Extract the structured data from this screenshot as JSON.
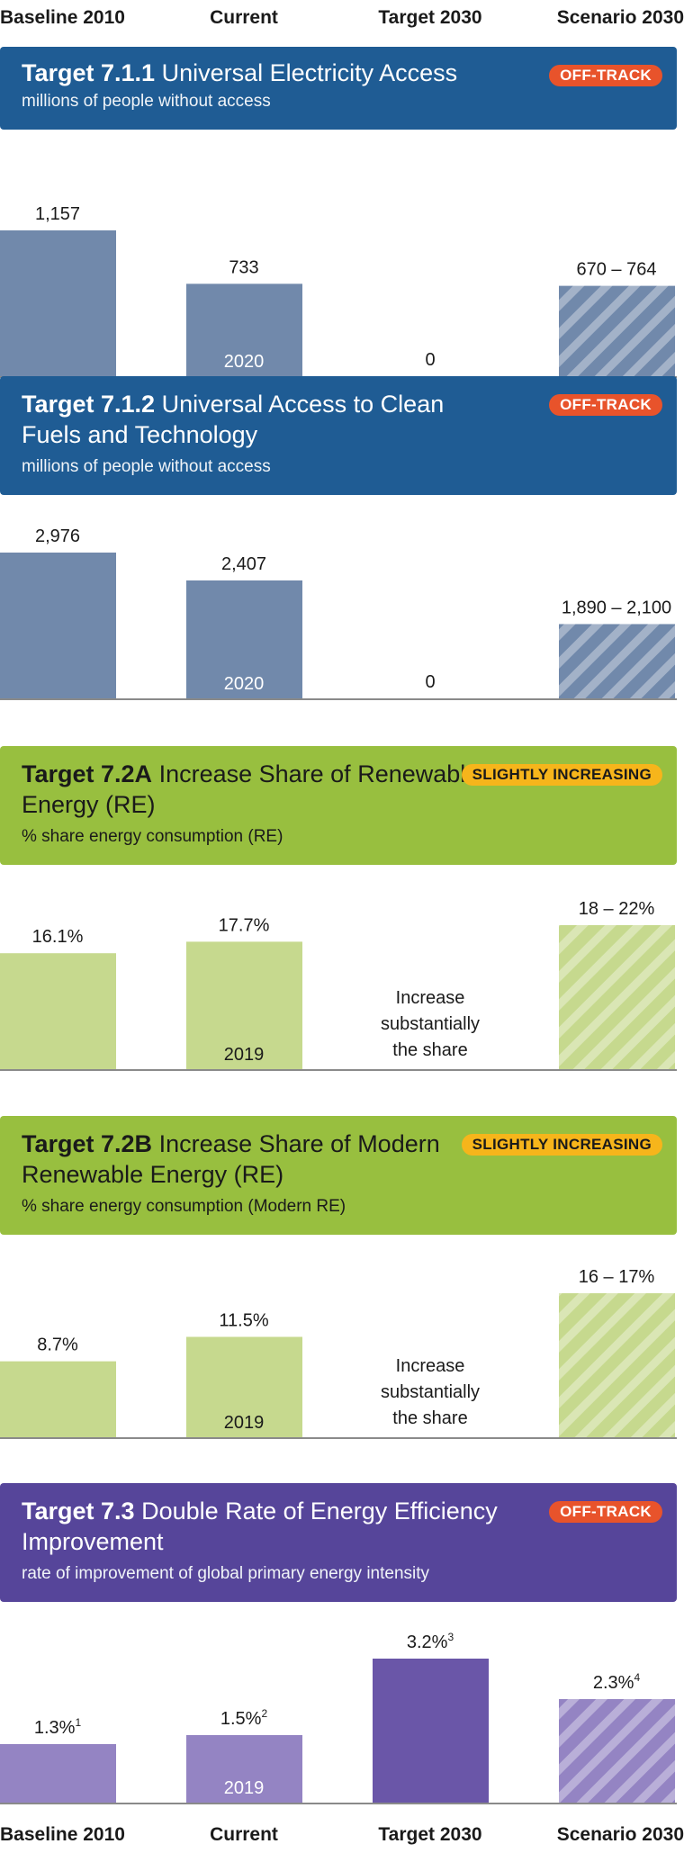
{
  "columns": [
    "Baseline 2010",
    "Current",
    "Target 2030",
    "Scenario 2030"
  ],
  "colors": {
    "blue_banner": "#1f5c94",
    "blue_bar": "#7189ab",
    "green_banner": "#98bf3f",
    "green_bar": "#c6d98e",
    "purple_banner": "#56459a",
    "purple_bar": "#9484c3",
    "purple_target": "#6a56a8",
    "off_track": "#e8532b",
    "slightly_increasing": "#f6b51b"
  },
  "panels": [
    {
      "code": "Target 7.1.1",
      "title": "Universal Electricity Access",
      "subtitle": "millions of people without access",
      "status": "OFF-TRACK",
      "theme": "blue"
    },
    {
      "code": "Target 7.1.2",
      "title": "Universal Access to Clean Fuels and Technology",
      "subtitle": "millions of people without access",
      "status": "OFF-TRACK",
      "theme": "blue"
    },
    {
      "code": "Target 7.2A",
      "title": "Increase Share of Renewable Energy (RE)",
      "subtitle": "% share energy consumption (RE)",
      "status": "SLIGHTLY INCREASING",
      "theme": "green"
    },
    {
      "code": "Target 7.2B",
      "title": "Increase Share of Modern Renewable Energy (RE)",
      "subtitle": "% share energy consumption (Modern RE)",
      "status": "SLIGHTLY INCREASING",
      "theme": "green"
    },
    {
      "code": "Target 7.3",
      "title": "Double Rate of Energy Efficiency Improvement",
      "subtitle": "rate of improvement of global primary energy intensity",
      "status": "OFF-TRACK",
      "theme": "purple"
    }
  ],
  "chart_data": [
    {
      "type": "bar",
      "title": "Target 7.1.1 Universal Electricity Access",
      "ylabel": "millions of people without access",
      "categories": [
        "Baseline 2010",
        "Current",
        "Target 2030",
        "Scenario 2030"
      ],
      "values": [
        1157,
        733,
        0,
        717
      ],
      "range": [
        null,
        null,
        null,
        [
          670,
          764
        ]
      ],
      "labels": [
        "1,157",
        "733",
        "0",
        "670 – 764"
      ],
      "year_labels": [
        "",
        "2020",
        "",
        ""
      ],
      "hatched": [
        false,
        false,
        false,
        true
      ],
      "ylim": [
        0,
        1157
      ]
    },
    {
      "type": "bar",
      "title": "Target 7.1.2 Universal Access to Clean Fuels and Technology",
      "ylabel": "millions of people without access",
      "categories": [
        "Baseline 2010",
        "Current",
        "Target 2030",
        "Scenario 2030"
      ],
      "values": [
        2976,
        2407,
        0,
        1995
      ],
      "range": [
        null,
        null,
        null,
        [
          1890,
          2100
        ]
      ],
      "labels": [
        "2,976",
        "2,407",
        "0",
        "1,890 – 2,100"
      ],
      "year_labels": [
        "",
        "2020",
        "",
        ""
      ],
      "hatched": [
        false,
        false,
        false,
        true
      ],
      "ylim": [
        0,
        2976
      ]
    },
    {
      "type": "bar",
      "title": "Target 7.2A Increase Share of Renewable Energy (RE)",
      "ylabel": "% share energy consumption (RE)",
      "categories": [
        "Baseline 2010",
        "Current",
        "Target 2030",
        "Scenario 2030"
      ],
      "values": [
        16.1,
        17.7,
        null,
        20
      ],
      "range": [
        null,
        null,
        null,
        [
          18,
          22
        ]
      ],
      "labels": [
        "16.1%",
        "17.7%",
        "Increase substantially the share",
        "18 – 22%"
      ],
      "year_labels": [
        "",
        "2019",
        "",
        ""
      ],
      "hatched": [
        false,
        false,
        false,
        true
      ],
      "ylim": [
        0,
        20
      ]
    },
    {
      "type": "bar",
      "title": "Target 7.2B Increase Share of Modern Renewable Energy (RE)",
      "ylabel": "% share energy consumption (Modern RE)",
      "categories": [
        "Baseline 2010",
        "Current",
        "Target 2030",
        "Scenario 2030"
      ],
      "values": [
        8.7,
        11.5,
        null,
        16.5
      ],
      "range": [
        null,
        null,
        null,
        [
          16,
          17
        ]
      ],
      "labels": [
        "8.7%",
        "11.5%",
        "Increase substantially the share",
        "16 – 17%"
      ],
      "year_labels": [
        "",
        "2019",
        "",
        ""
      ],
      "hatched": [
        false,
        false,
        false,
        true
      ],
      "ylim": [
        0,
        16.5
      ]
    },
    {
      "type": "bar",
      "title": "Target 7.3 Double Rate of Energy Efficiency Improvement",
      "ylabel": "rate of improvement of global primary energy intensity",
      "categories": [
        "Baseline 2010",
        "Current",
        "Target 2030",
        "Scenario 2030"
      ],
      "values": [
        1.3,
        1.5,
        3.2,
        2.3
      ],
      "labels": [
        "1.3%",
        "1.5%",
        "3.2%",
        "2.3%"
      ],
      "footnotes": [
        "1",
        "2",
        "3",
        "4"
      ],
      "year_labels": [
        "",
        "2019",
        "",
        ""
      ],
      "hatched": [
        false,
        false,
        false,
        true
      ],
      "ylim": [
        0,
        3.2
      ]
    }
  ]
}
